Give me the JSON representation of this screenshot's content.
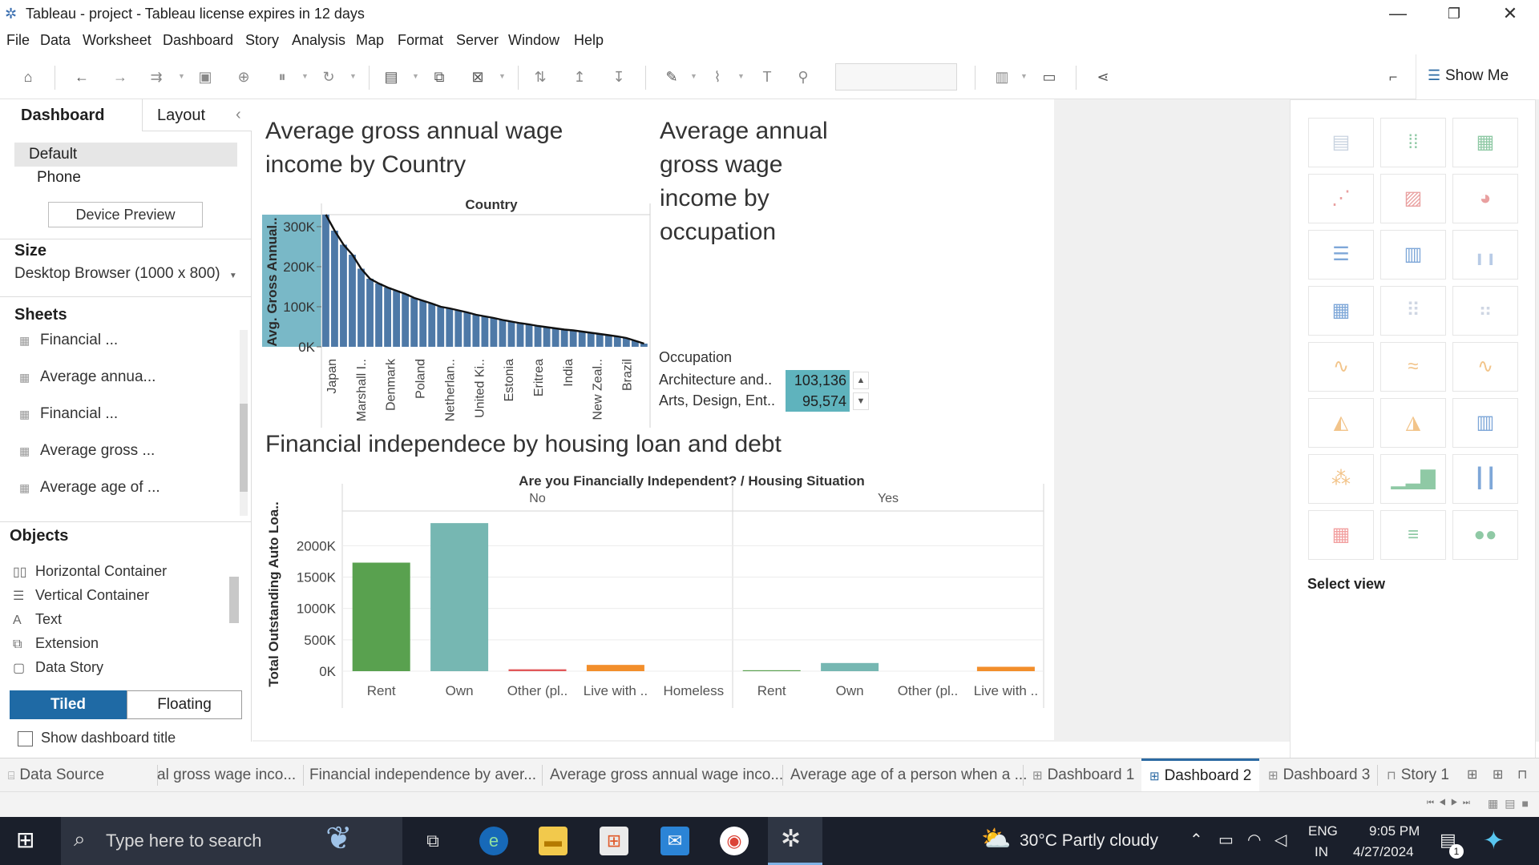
{
  "window": {
    "title": "Tableau - project - Tableau license expires in 12 days",
    "minimize": "—",
    "maximize": "❐",
    "close": "✕"
  },
  "menu": [
    "File",
    "Data",
    "Worksheet",
    "Dashboard",
    "Story",
    "Analysis",
    "Map",
    "Format",
    "Server",
    "Window",
    "Help"
  ],
  "toolbar": {
    "show_me": "Show Me"
  },
  "left_panel": {
    "tab_dashboard": "Dashboard",
    "tab_layout": "Layout",
    "collapse": "‹",
    "device_default": "Default",
    "device_phone": "Phone",
    "device_preview": "Device Preview",
    "size_title": "Size",
    "size_value": "Desktop Browser (1000 x 800)",
    "sheets_title": "Sheets",
    "sheets": [
      "Financial ...",
      "Average annua...",
      "Financial ...",
      "Average gross ...",
      "Average age of ..."
    ],
    "objects_title": "Objects",
    "objects": [
      "Horizontal Container",
      "Vertical Container",
      "Text",
      "Extension",
      "Data Story"
    ],
    "tiled": "Tiled",
    "floating": "Floating",
    "show_dashboard_title": "Show dashboard title"
  },
  "dashboard": {
    "title1_line1": "Average gross annual wage",
    "title1_line2": "income by Country",
    "title2_lines": [
      "Average annual",
      "gross wage",
      "income by",
      "occupation"
    ],
    "title3": "Financial independece by housing loan and debt"
  },
  "country_chart": {
    "type": "bar",
    "column_header": "Country",
    "ylabel": "Avg. Gross Annual..",
    "yticks": [
      "300K",
      "200K",
      "100K",
      "0K"
    ],
    "ylim": [
      0,
      330000
    ],
    "tick_labels": [
      "Japan",
      "Marshall I..",
      "Denmark",
      "Poland",
      "Netherlan..",
      "United Ki..",
      "Estonia",
      "Eritrea",
      "India",
      "New Zeal..",
      "Brazil"
    ],
    "values": [
      330000,
      290000,
      255000,
      230000,
      195000,
      170000,
      158000,
      148000,
      140000,
      132000,
      122000,
      115000,
      108000,
      100000,
      96000,
      91000,
      86000,
      80000,
      76000,
      72000,
      67000,
      63000,
      59000,
      56000,
      52000,
      49000,
      46000,
      43000,
      41000,
      38000,
      35000,
      32000,
      29000,
      26000,
      22000,
      15000,
      8000
    ],
    "bar_color": "#4e79a7",
    "highlight_color": "#79b8c7"
  },
  "occupation_table": {
    "header": "Occupation",
    "rows": [
      {
        "label": "Architecture and..",
        "value": "103,136"
      },
      {
        "label": "Arts, Design, Ent..",
        "value": "95,574"
      }
    ],
    "cell_color": "#5fb3bd"
  },
  "chart_data": {
    "type": "bar",
    "title": "Financial independece by housing loan and debt",
    "column_header": "Are you Financially Independent? / Housing Situation",
    "ylabel": "Total Outstanding Auto Loa..",
    "yticks": [
      "2000K",
      "1500K",
      "1000K",
      "500K",
      "0K"
    ],
    "ylim": [
      0,
      2400000
    ],
    "panels": [
      {
        "name": "No",
        "categories": [
          "Rent",
          "Own",
          "Other (pl..",
          "Live with ..",
          "Homeless"
        ],
        "values": [
          1730000,
          2360000,
          30000,
          100000,
          0
        ],
        "colors": [
          "#59a14f",
          "#76b7b2",
          "#e15759",
          "#f28e2b",
          "#bab0ac"
        ]
      },
      {
        "name": "Yes",
        "categories": [
          "Rent",
          "Own",
          "Other (pl..",
          "Live with .."
        ],
        "values": [
          15000,
          130000,
          0,
          70000
        ],
        "colors": [
          "#59a14f",
          "#76b7b2",
          "#e15759",
          "#f28e2b"
        ]
      }
    ]
  },
  "show_me": {
    "select_view": "Select view"
  },
  "sheet_tabs": [
    "Data Source",
    "al gross wage inco...",
    "Financial independence by aver...",
    "Average gross annual wage inco...",
    "Average age of a person when a ...",
    "Dashboard 1",
    "Dashboard 2",
    "Dashboard 3",
    "Story 1"
  ],
  "taskbar": {
    "search_placeholder": "Type here to search",
    "weather": "30°C  Partly cloudy",
    "lang1": "ENG",
    "lang2": "IN",
    "time": "9:05 PM",
    "date": "4/27/2024",
    "notif_count": "1"
  }
}
